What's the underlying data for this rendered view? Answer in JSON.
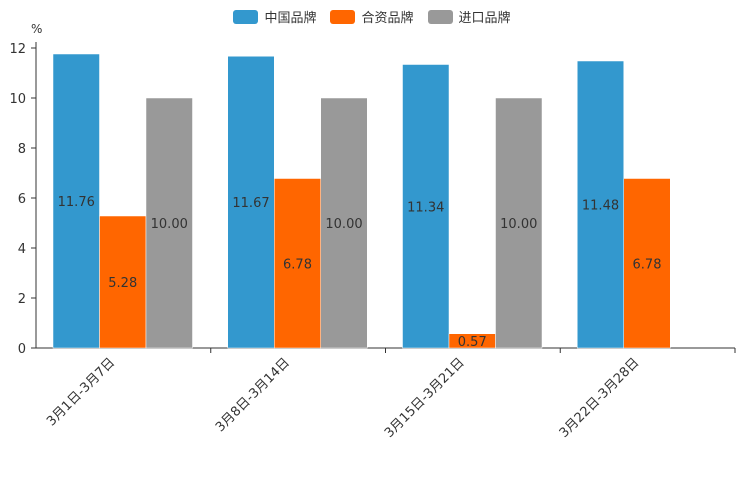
{
  "chart_data": {
    "type": "bar",
    "unit_label": "%",
    "categories": [
      "3月1日-3月7日",
      "3月8日-3月14日",
      "3月15日-3月21日",
      "3月22日-3月28日"
    ],
    "series": [
      {
        "name": "中国品牌",
        "color": "#3398CE",
        "values": [
          11.76,
          11.67,
          11.34,
          11.48
        ],
        "labels": [
          "11.76",
          "11.67",
          "11.34",
          "11.48"
        ]
      },
      {
        "name": "合资品牌",
        "color": "#FF6600",
        "values": [
          5.28,
          6.78,
          0.57,
          6.78
        ],
        "labels": [
          "5.28",
          "6.78",
          "0.57",
          "6.78"
        ]
      },
      {
        "name": "进口品牌",
        "color": "#999999",
        "values": [
          10.0,
          10.0,
          10.0,
          null
        ],
        "labels": [
          "10.00",
          "10.00",
          "10.00",
          ""
        ]
      }
    ],
    "y_ticks": [
      "0",
      "2",
      "4",
      "6",
      "8",
      "10",
      "12"
    ],
    "ylim": [
      0,
      12
    ],
    "legend_position": "top-center",
    "grid": false
  }
}
